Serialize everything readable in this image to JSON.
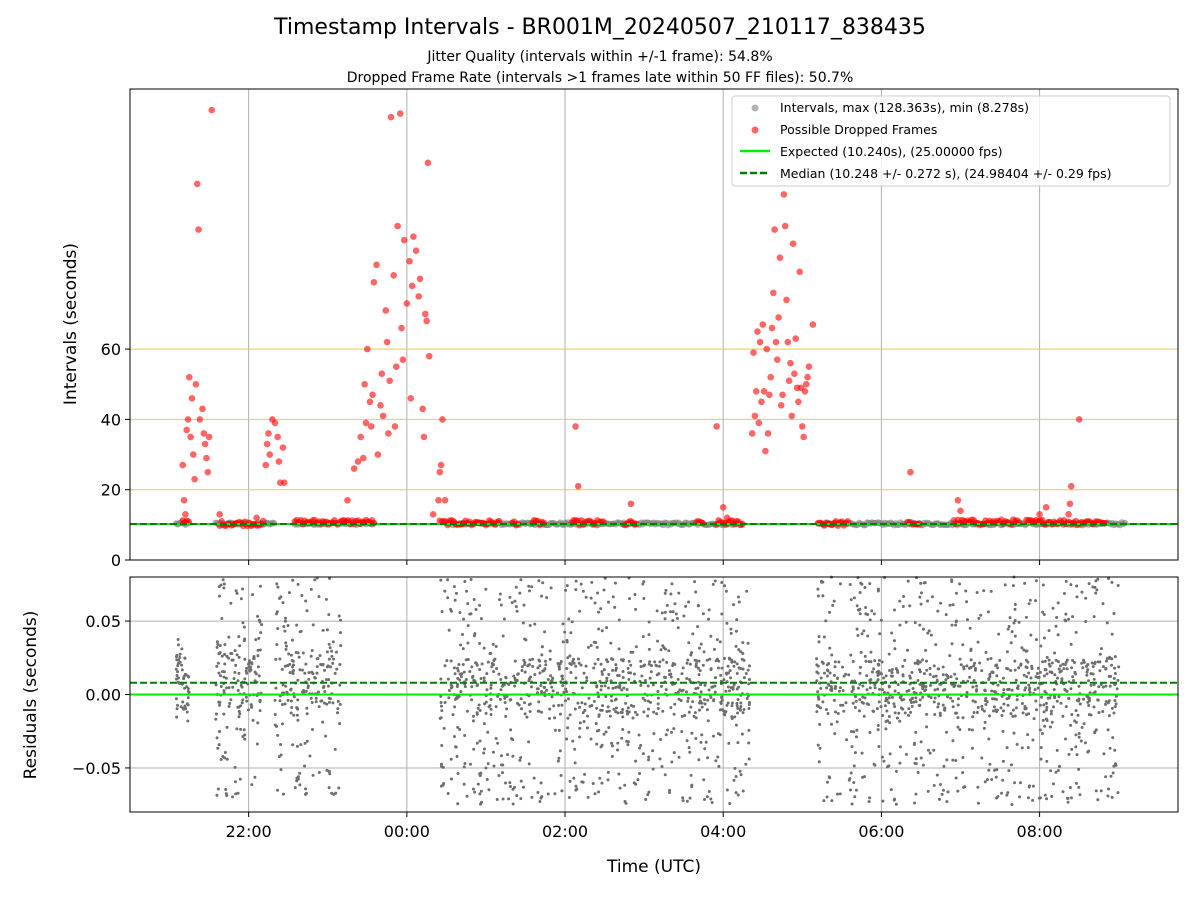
{
  "chart_data": [
    {
      "type": "scatter",
      "title": "Timestamp Intervals - BR001M_20240507_210117_838435",
      "subtitle_lines": [
        "Jitter Quality (intervals within +/-1 frame): 54.8%",
        "Dropped Frame Rate (intervals >1 frames late within 50 FF files): 50.7%"
      ],
      "xlabel": "",
      "ylabel": "Intervals (seconds)",
      "x_unit": "time of day (UTC), 2024-05-07 to 2024-05-08",
      "xlim": [
        "2024-05-07 20:30",
        "2024-05-08 09:45"
      ],
      "ylim": [
        0,
        134
      ],
      "yticks": [
        0,
        20,
        40,
        60
      ],
      "threshold_lines": [
        20,
        40,
        60
      ],
      "grid": true,
      "legend_position": "upper right",
      "legend": [
        "Intervals, max (128.363s), min (8.278s)",
        "Possible Dropped Frames",
        "Expected (10.240s), (25.00000 fps)",
        "Median (10.248 +/- 0.272 s), (24.98404 +/- 0.29 fps)"
      ],
      "expected_interval": 10.24,
      "median_interval": 10.248,
      "interval_segments": [
        {
          "x_start": "2024-05-07 21:05",
          "x_end": "2024-05-07 21:15",
          "y": 10.3
        },
        {
          "x_start": "2024-05-07 21:35",
          "x_end": "2024-05-07 22:20",
          "y": 10.3
        },
        {
          "x_start": "2024-05-07 22:35",
          "x_end": "2024-05-07 23:35",
          "y": 10.4
        },
        {
          "x_start": "2024-05-08 00:30",
          "x_end": "2024-05-08 04:15",
          "y": 10.3
        },
        {
          "x_start": "2024-05-08 05:12",
          "x_end": "2024-05-08 09:05",
          "y": 10.3
        }
      ],
      "dropped_frames": [
        {
          "x": "2024-05-07 21:10",
          "y": 27
        },
        {
          "x": "2024-05-07 21:11",
          "y": 17
        },
        {
          "x": "2024-05-07 21:12",
          "y": 13
        },
        {
          "x": "2024-05-07 21:13",
          "y": 37
        },
        {
          "x": "2024-05-07 21:14",
          "y": 40
        },
        {
          "x": "2024-05-07 21:15",
          "y": 52
        },
        {
          "x": "2024-05-07 21:16",
          "y": 35
        },
        {
          "x": "2024-05-07 21:17",
          "y": 46
        },
        {
          "x": "2024-05-07 21:18",
          "y": 30
        },
        {
          "x": "2024-05-07 21:19",
          "y": 23
        },
        {
          "x": "2024-05-07 21:20",
          "y": 50
        },
        {
          "x": "2024-05-07 21:21",
          "y": 107
        },
        {
          "x": "2024-05-07 21:22",
          "y": 94
        },
        {
          "x": "2024-05-07 21:23",
          "y": 40
        },
        {
          "x": "2024-05-07 21:25",
          "y": 43
        },
        {
          "x": "2024-05-07 21:26",
          "y": 36
        },
        {
          "x": "2024-05-07 21:27",
          "y": 33
        },
        {
          "x": "2024-05-07 21:28",
          "y": 29
        },
        {
          "x": "2024-05-07 21:29",
          "y": 25
        },
        {
          "x": "2024-05-07 21:30",
          "y": 35
        },
        {
          "x": "2024-05-07 21:32",
          "y": 128
        },
        {
          "x": "2024-05-07 21:38",
          "y": 13
        },
        {
          "x": "2024-05-07 22:06",
          "y": 12
        },
        {
          "x": "2024-05-07 22:13",
          "y": 27
        },
        {
          "x": "2024-05-07 22:14",
          "y": 33
        },
        {
          "x": "2024-05-07 22:15",
          "y": 36
        },
        {
          "x": "2024-05-07 22:16",
          "y": 30
        },
        {
          "x": "2024-05-07 22:18",
          "y": 40
        },
        {
          "x": "2024-05-07 22:20",
          "y": 39
        },
        {
          "x": "2024-05-07 22:22",
          "y": 35
        },
        {
          "x": "2024-05-07 22:23",
          "y": 28
        },
        {
          "x": "2024-05-07 22:24",
          "y": 22
        },
        {
          "x": "2024-05-07 22:26",
          "y": 32
        },
        {
          "x": "2024-05-07 22:27",
          "y": 22
        },
        {
          "x": "2024-05-07 23:15",
          "y": 17
        },
        {
          "x": "2024-05-07 23:20",
          "y": 26
        },
        {
          "x": "2024-05-07 23:23",
          "y": 28
        },
        {
          "x": "2024-05-07 23:25",
          "y": 35
        },
        {
          "x": "2024-05-07 23:27",
          "y": 29
        },
        {
          "x": "2024-05-07 23:28",
          "y": 50
        },
        {
          "x": "2024-05-07 23:29",
          "y": 39
        },
        {
          "x": "2024-05-07 23:30",
          "y": 60
        },
        {
          "x": "2024-05-07 23:32",
          "y": 45
        },
        {
          "x": "2024-05-07 23:33",
          "y": 38
        },
        {
          "x": "2024-05-07 23:34",
          "y": 47
        },
        {
          "x": "2024-05-07 23:35",
          "y": 79
        },
        {
          "x": "2024-05-07 23:37",
          "y": 84
        },
        {
          "x": "2024-05-07 23:38",
          "y": 30
        },
        {
          "x": "2024-05-07 23:40",
          "y": 44
        },
        {
          "x": "2024-05-07 23:41",
          "y": 53
        },
        {
          "x": "2024-05-07 23:42",
          "y": 41
        },
        {
          "x": "2024-05-07 23:44",
          "y": 71
        },
        {
          "x": "2024-05-07 23:45",
          "y": 62
        },
        {
          "x": "2024-05-07 23:46",
          "y": 36
        },
        {
          "x": "2024-05-07 23:47",
          "y": 51
        },
        {
          "x": "2024-05-07 23:48",
          "y": 126
        },
        {
          "x": "2024-05-07 23:50",
          "y": 81
        },
        {
          "x": "2024-05-07 23:51",
          "y": 38
        },
        {
          "x": "2024-05-07 23:52",
          "y": 55
        },
        {
          "x": "2024-05-07 23:53",
          "y": 95
        },
        {
          "x": "2024-05-07 23:55",
          "y": 127
        },
        {
          "x": "2024-05-07 23:56",
          "y": 66
        },
        {
          "x": "2024-05-07 23:57",
          "y": 57
        },
        {
          "x": "2024-05-07 23:58",
          "y": 91
        },
        {
          "x": "2024-05-08 00:00",
          "y": 73
        },
        {
          "x": "2024-05-08 00:02",
          "y": 85
        },
        {
          "x": "2024-05-08 00:03",
          "y": 46
        },
        {
          "x": "2024-05-08 00:04",
          "y": 78
        },
        {
          "x": "2024-05-08 00:05",
          "y": 92
        },
        {
          "x": "2024-05-08 00:07",
          "y": 88
        },
        {
          "x": "2024-05-08 00:09",
          "y": 75
        },
        {
          "x": "2024-05-08 00:10",
          "y": 80
        },
        {
          "x": "2024-05-08 00:12",
          "y": 43
        },
        {
          "x": "2024-05-08 00:13",
          "y": 35
        },
        {
          "x": "2024-05-08 00:14",
          "y": 70
        },
        {
          "x": "2024-05-08 00:15",
          "y": 68
        },
        {
          "x": "2024-05-08 00:16",
          "y": 113
        },
        {
          "x": "2024-05-08 00:17",
          "y": 58
        },
        {
          "x": "2024-05-08 00:20",
          "y": 13
        },
        {
          "x": "2024-05-08 00:24",
          "y": 17
        },
        {
          "x": "2024-05-08 00:25",
          "y": 25
        },
        {
          "x": "2024-05-08 00:26",
          "y": 27
        },
        {
          "x": "2024-05-08 00:27",
          "y": 40
        },
        {
          "x": "2024-05-08 00:29",
          "y": 17
        },
        {
          "x": "2024-05-08 02:08",
          "y": 38
        },
        {
          "x": "2024-05-08 02:10",
          "y": 21
        },
        {
          "x": "2024-05-08 02:50",
          "y": 16
        },
        {
          "x": "2024-05-08 03:55",
          "y": 38
        },
        {
          "x": "2024-05-08 04:00",
          "y": 15
        },
        {
          "x": "2024-05-08 04:03",
          "y": 12
        },
        {
          "x": "2024-05-08 04:22",
          "y": 36
        },
        {
          "x": "2024-05-08 04:23",
          "y": 59
        },
        {
          "x": "2024-05-08 04:24",
          "y": 41
        },
        {
          "x": "2024-05-08 04:25",
          "y": 48
        },
        {
          "x": "2024-05-08 04:26",
          "y": 65
        },
        {
          "x": "2024-05-08 04:27",
          "y": 39
        },
        {
          "x": "2024-05-08 04:28",
          "y": 62
        },
        {
          "x": "2024-05-08 04:29",
          "y": 45
        },
        {
          "x": "2024-05-08 04:30",
          "y": 67
        },
        {
          "x": "2024-05-08 04:31",
          "y": 48
        },
        {
          "x": "2024-05-08 04:32",
          "y": 31
        },
        {
          "x": "2024-05-08 04:33",
          "y": 60
        },
        {
          "x": "2024-05-08 04:34",
          "y": 36
        },
        {
          "x": "2024-05-08 04:35",
          "y": 47
        },
        {
          "x": "2024-05-08 04:36",
          "y": 52
        },
        {
          "x": "2024-05-08 04:37",
          "y": 66
        },
        {
          "x": "2024-05-08 04:38",
          "y": 76
        },
        {
          "x": "2024-05-08 04:39",
          "y": 94
        },
        {
          "x": "2024-05-08 04:40",
          "y": 62
        },
        {
          "x": "2024-05-08 04:41",
          "y": 57
        },
        {
          "x": "2024-05-08 04:42",
          "y": 69
        },
        {
          "x": "2024-05-08 04:43",
          "y": 86
        },
        {
          "x": "2024-05-08 04:44",
          "y": 44
        },
        {
          "x": "2024-05-08 04:45",
          "y": 47
        },
        {
          "x": "2024-05-08 04:46",
          "y": 104
        },
        {
          "x": "2024-05-08 04:47",
          "y": 95
        },
        {
          "x": "2024-05-08 04:48",
          "y": 74
        },
        {
          "x": "2024-05-08 04:49",
          "y": 62
        },
        {
          "x": "2024-05-08 04:50",
          "y": 51
        },
        {
          "x": "2024-05-08 04:51",
          "y": 56
        },
        {
          "x": "2024-05-08 04:52",
          "y": 41
        },
        {
          "x": "2024-05-08 04:53",
          "y": 90
        },
        {
          "x": "2024-05-08 04:54",
          "y": 53
        },
        {
          "x": "2024-05-08 04:55",
          "y": 63
        },
        {
          "x": "2024-05-08 04:56",
          "y": 49
        },
        {
          "x": "2024-05-08 04:57",
          "y": 45
        },
        {
          "x": "2024-05-08 04:58",
          "y": 82
        },
        {
          "x": "2024-05-08 04:59",
          "y": 49
        },
        {
          "x": "2024-05-08 05:00",
          "y": 38
        },
        {
          "x": "2024-05-08 05:01",
          "y": 35
        },
        {
          "x": "2024-05-08 05:02",
          "y": 48
        },
        {
          "x": "2024-05-08 05:03",
          "y": 50
        },
        {
          "x": "2024-05-08 05:04",
          "y": 52
        },
        {
          "x": "2024-05-08 05:05",
          "y": 55
        },
        {
          "x": "2024-05-08 05:08",
          "y": 67
        },
        {
          "x": "2024-05-08 06:22",
          "y": 25
        },
        {
          "x": "2024-05-08 06:58",
          "y": 17
        },
        {
          "x": "2024-05-08 07:00",
          "y": 14
        },
        {
          "x": "2024-05-08 08:00",
          "y": 13
        },
        {
          "x": "2024-05-08 08:05",
          "y": 15
        },
        {
          "x": "2024-05-08 08:22",
          "y": 13
        },
        {
          "x": "2024-05-08 08:23",
          "y": 16
        },
        {
          "x": "2024-05-08 08:24",
          "y": 21
        },
        {
          "x": "2024-05-08 08:30",
          "y": 40
        }
      ],
      "dropped_frame_clusters": [
        {
          "x_start": "2024-05-07 21:10",
          "x_end": "2024-05-07 21:15",
          "y": 10.8
        },
        {
          "x_start": "2024-05-07 21:38",
          "x_end": "2024-05-07 22:12",
          "y": 10.4
        },
        {
          "x_start": "2024-05-07 22:35",
          "x_end": "2024-05-07 23:35",
          "y": 10.8
        },
        {
          "x_start": "2024-05-08 00:25",
          "x_end": "2024-05-08 01:10",
          "y": 10.6
        },
        {
          "x_start": "2024-05-08 01:20",
          "x_end": "2024-05-08 01:25",
          "y": 10.6
        },
        {
          "x_start": "2024-05-08 01:35",
          "x_end": "2024-05-08 01:45",
          "y": 10.6
        },
        {
          "x_start": "2024-05-08 02:05",
          "x_end": "2024-05-08 02:30",
          "y": 10.6
        },
        {
          "x_start": "2024-05-08 02:45",
          "x_end": "2024-05-08 02:55",
          "y": 10.4
        },
        {
          "x_start": "2024-05-08 03:40",
          "x_end": "2024-05-08 03:45",
          "y": 10.4
        },
        {
          "x_start": "2024-05-08 03:55",
          "x_end": "2024-05-08 04:15",
          "y": 10.6
        },
        {
          "x_start": "2024-05-08 05:12",
          "x_end": "2024-05-08 05:35",
          "y": 10.4
        },
        {
          "x_start": "2024-05-08 06:20",
          "x_end": "2024-05-08 06:30",
          "y": 10.4
        },
        {
          "x_start": "2024-05-08 06:55",
          "x_end": "2024-05-08 07:45",
          "y": 10.8
        },
        {
          "x_start": "2024-05-08 07:50",
          "x_end": "2024-05-08 08:50",
          "y": 10.8
        }
      ]
    },
    {
      "type": "scatter",
      "xlabel": "Time (UTC)",
      "ylabel": "Residuals (seconds)",
      "xlim": [
        "2024-05-07 20:30",
        "2024-05-08 09:45"
      ],
      "ylim": [
        -0.08,
        0.08
      ],
      "yticks": [
        0.05,
        0.0,
        -0.05
      ],
      "ytick_labels": [
        "0.05",
        "0.00",
        "−0.05"
      ],
      "xticks": [
        "2024-05-07 22:00",
        "2024-05-08 00:00",
        "2024-05-08 02:00",
        "2024-05-08 04:00",
        "2024-05-08 06:00",
        "2024-05-08 08:00"
      ],
      "xtick_labels": [
        "22:00",
        "00:00",
        "02:00",
        "04:00",
        "06:00",
        "08:00"
      ],
      "grid": true,
      "expected_residual": 0.0,
      "median_residual": 0.008,
      "residual_segments": [
        {
          "x_start": "2024-05-07 21:05",
          "x_end": "2024-05-07 21:15",
          "center": 0.01,
          "spread": 0.03,
          "count": 50
        },
        {
          "x_start": "2024-05-07 21:35",
          "x_end": "2024-05-07 22:10",
          "center": 0.01,
          "spread": 0.08,
          "count": 180
        },
        {
          "x_start": "2024-05-07 22:20",
          "x_end": "2024-05-07 23:10",
          "center": 0.01,
          "spread": 0.08,
          "count": 230
        },
        {
          "x_start": "2024-05-08 00:25",
          "x_end": "2024-05-08 04:20",
          "center": 0.005,
          "spread": 0.08,
          "count": 1000
        },
        {
          "x_start": "2024-05-08 05:10",
          "x_end": "2024-05-08 09:00",
          "center": 0.005,
          "spread": 0.08,
          "count": 1000
        }
      ]
    }
  ],
  "legend_style": {
    "intervals_color": "#808080",
    "dropped_color": "#ff0000",
    "expected_color": "#00ee00",
    "median_color": "#008000",
    "threshold_color": "#f5c842"
  }
}
